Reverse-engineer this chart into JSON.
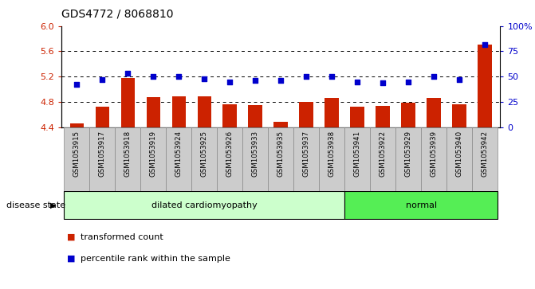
{
  "title": "GDS4772 / 8068810",
  "samples": [
    "GSM1053915",
    "GSM1053917",
    "GSM1053918",
    "GSM1053919",
    "GSM1053924",
    "GSM1053925",
    "GSM1053926",
    "GSM1053933",
    "GSM1053935",
    "GSM1053937",
    "GSM1053938",
    "GSM1053941",
    "GSM1053922",
    "GSM1053929",
    "GSM1053939",
    "GSM1053940",
    "GSM1053942"
  ],
  "bar_values": [
    4.46,
    4.73,
    5.18,
    4.87,
    4.89,
    4.89,
    4.76,
    4.75,
    4.49,
    4.8,
    4.86,
    4.73,
    4.74,
    4.79,
    4.86,
    4.76,
    5.7
  ],
  "dot_values_pct": [
    42,
    47,
    53,
    50,
    50,
    48,
    45,
    46,
    46,
    50,
    50,
    45,
    44,
    45,
    50,
    47,
    82
  ],
  "disease_groups": [
    {
      "label": "dilated cardiomyopathy",
      "start": 0,
      "end": 11,
      "color": "#ccffcc"
    },
    {
      "label": "normal",
      "start": 11,
      "end": 17,
      "color": "#55ee55"
    }
  ],
  "bar_color": "#cc2200",
  "dot_color": "#0000cc",
  "ylim_left": [
    4.4,
    6.0
  ],
  "ylim_right": [
    0,
    100
  ],
  "yticks_left": [
    4.4,
    4.8,
    5.2,
    5.6,
    6.0
  ],
  "yticks_right": [
    0,
    25,
    50,
    75,
    100
  ],
  "ytick_labels_right": [
    "0",
    "25",
    "50",
    "75",
    "100%"
  ],
  "hlines": [
    4.8,
    5.2,
    5.6
  ],
  "plot_bg": "#ffffff",
  "cell_bg": "#cccccc",
  "legend_items": [
    {
      "label": "transformed count",
      "color": "#cc2200"
    },
    {
      "label": "percentile rank within the sample",
      "color": "#0000cc"
    }
  ]
}
